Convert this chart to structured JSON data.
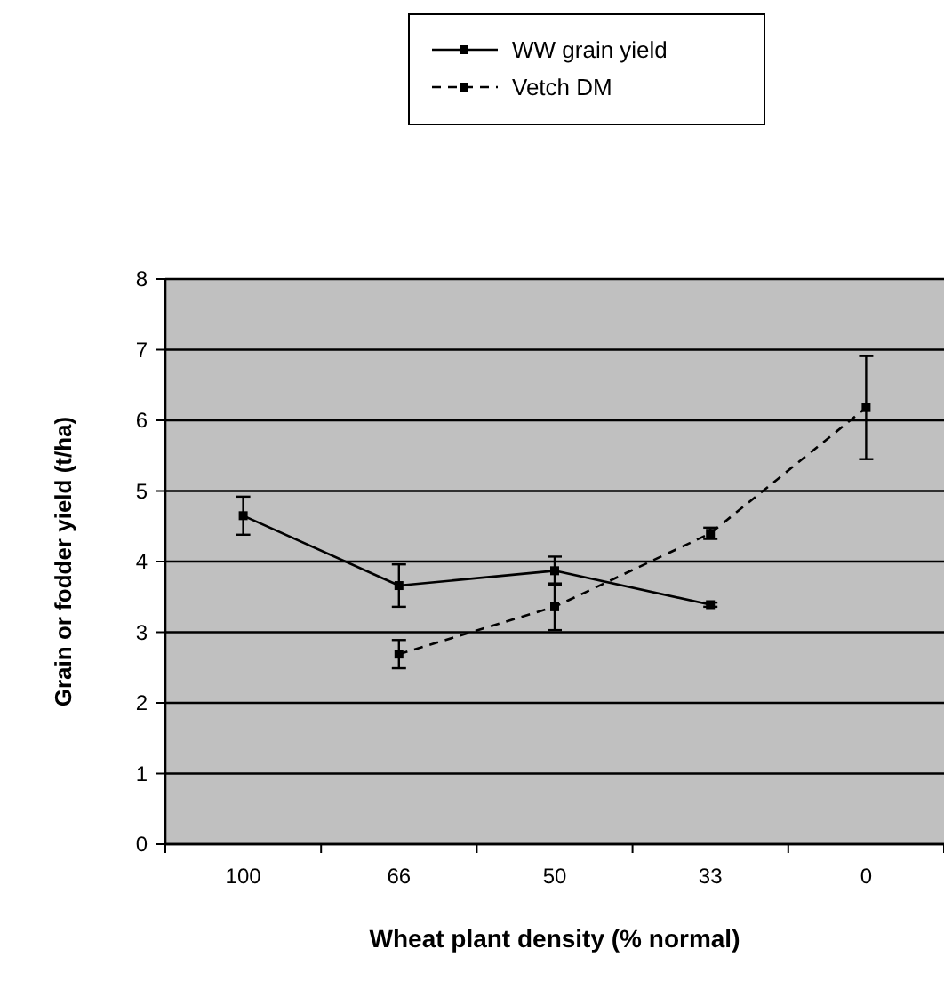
{
  "chart_data": {
    "type": "line",
    "xlabel": "Wheat plant density (% normal)",
    "ylabel": "Grain or fodder yield (t/ha)",
    "categories": [
      "100",
      "66",
      "50",
      "33",
      "0"
    ],
    "series": [
      {
        "name": "WW grain yield",
        "color": "#000000",
        "line_style": "solid",
        "values": [
          4.65,
          3.66,
          3.87,
          3.39,
          null
        ],
        "errors": [
          0.27,
          0.3,
          0.2,
          0.03,
          null
        ]
      },
      {
        "name": "Vetch DM",
        "color": "#000000",
        "line_style": "dashed",
        "values": [
          null,
          2.69,
          3.36,
          4.4,
          6.18
        ],
        "errors": [
          null,
          0.2,
          0.33,
          0.08,
          0.73
        ]
      }
    ],
    "ylim": [
      0,
      8
    ],
    "yticks": [
      0,
      1,
      2,
      3,
      4,
      5,
      6,
      7,
      8
    ],
    "grid": "y",
    "legend": "top right",
    "marker": "square"
  }
}
